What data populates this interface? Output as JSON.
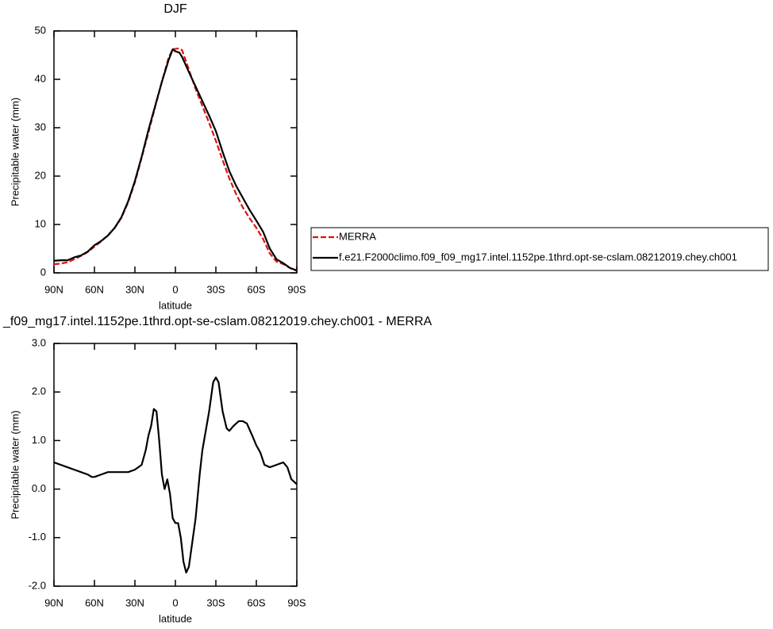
{
  "chart_data": [
    {
      "type": "line",
      "title": "DJF",
      "x_label": "latitude",
      "y_label": "Precipitable water (mm)",
      "x": [
        90,
        85,
        80,
        75,
        70,
        65,
        60,
        55,
        50,
        45,
        40,
        35,
        30,
        25,
        20,
        15,
        10,
        5,
        2,
        0,
        -3,
        -5,
        -10,
        -15,
        -20,
        -25,
        -30,
        -35,
        -40,
        -45,
        -50,
        -55,
        -60,
        -65,
        -70,
        -75,
        -80,
        -85,
        -90
      ],
      "series": [
        {
          "name": "MERRA",
          "color": "#e01010",
          "dashed": true,
          "values": [
            1.8,
            1.9,
            2.2,
            2.8,
            3.5,
            4.3,
            5.4,
            6.5,
            7.8,
            9.3,
            11.4,
            14.6,
            18.7,
            23.8,
            29,
            34.3,
            39.5,
            44.5,
            46.2,
            46.3,
            46.4,
            46,
            42,
            38,
            34.5,
            31,
            27.3,
            23.3,
            19.5,
            16.3,
            13.5,
            11.3,
            9.3,
            7,
            4,
            2.3,
            1.8,
            1,
            0.4
          ]
        },
        {
          "name": "f.e21.F2000climo.f09_f09_mg17.intel.1152pe.1thrd.opt-se-cslam.08212019.chey.ch001",
          "color": "#000000",
          "dashed": false,
          "values": [
            2.5,
            2.6,
            2.6,
            3.2,
            3.6,
            4.4,
            5.7,
            6.6,
            7.7,
            9.3,
            11.5,
            14.8,
            19,
            24,
            29.5,
            34.5,
            39.5,
            44,
            46.2,
            45.8,
            45.5,
            44.6,
            41.5,
            38.5,
            35.5,
            32.5,
            29.3,
            25,
            21,
            18,
            15.5,
            13,
            10.8,
            8.5,
            5,
            2.8,
            2,
            1,
            0.5
          ]
        }
      ],
      "xlim": [
        90,
        -90
      ],
      "xticks": [
        {
          "value": 90,
          "label": "90N"
        },
        {
          "value": 60,
          "label": "60N"
        },
        {
          "value": 30,
          "label": "30N"
        },
        0,
        {
          "value": -30,
          "label": "30S"
        },
        {
          "value": -60,
          "label": "60S"
        },
        {
          "value": -90,
          "label": "90S"
        }
      ],
      "ylim": [
        0,
        50
      ],
      "yticks": [
        0,
        10,
        20,
        30,
        40,
        50
      ],
      "legend": "right"
    },
    {
      "type": "line",
      "title": "_f09_mg17.intel.1152pe.1thrd.opt-se-cslam.08212019.chey.ch001 - MERRA",
      "x_label": "latitude",
      "y_label": "Precipitable water (mm)",
      "x": [
        90,
        85,
        80,
        75,
        70,
        65,
        62,
        60,
        55,
        50,
        45,
        40,
        35,
        30,
        25,
        22,
        20,
        18,
        16,
        14,
        12,
        10,
        8,
        6,
        4,
        2,
        0,
        -2,
        -4,
        -6,
        -8,
        -10,
        -12,
        -15,
        -18,
        -20,
        -25,
        -28,
        -30,
        -32,
        -35,
        -38,
        -40,
        -43,
        -47,
        -50,
        -53,
        -57,
        -60,
        -63,
        -66,
        -70,
        -75,
        -80,
        -83,
        -86,
        -90
      ],
      "series": [
        {
          "name": null,
          "color": "#000000",
          "dashed": false,
          "values": [
            0.55,
            0.5,
            0.45,
            0.4,
            0.35,
            0.3,
            0.25,
            0.25,
            0.3,
            0.35,
            0.35,
            0.35,
            0.35,
            0.4,
            0.5,
            0.8,
            1.1,
            1.3,
            1.65,
            1.6,
            1.0,
            0.3,
            0.0,
            0.2,
            -0.1,
            -0.6,
            -0.7,
            -0.7,
            -1.0,
            -1.5,
            -1.72,
            -1.6,
            -1.2,
            -0.6,
            0.3,
            0.8,
            1.6,
            2.2,
            2.3,
            2.2,
            1.6,
            1.25,
            1.2,
            1.3,
            1.4,
            1.4,
            1.35,
            1.1,
            0.9,
            0.75,
            0.5,
            0.45,
            0.5,
            0.55,
            0.45,
            0.2,
            0.1
          ]
        }
      ],
      "xlim": [
        90,
        -90
      ],
      "xticks": [
        {
          "value": 90,
          "label": "90N"
        },
        {
          "value": 60,
          "label": "60N"
        },
        {
          "value": 30,
          "label": "30N"
        },
        0,
        {
          "value": -30,
          "label": "30S"
        },
        {
          "value": -60,
          "label": "60S"
        },
        {
          "value": -90,
          "label": "90S"
        }
      ],
      "ylim": [
        -2,
        3
      ],
      "yticks": [
        {
          "value": -2,
          "label": "-2.0"
        },
        {
          "value": -1,
          "label": "-1.0"
        },
        {
          "value": 0,
          "label": "0.0"
        },
        {
          "value": 1,
          "label": "1.0"
        },
        {
          "value": 2,
          "label": "2.0"
        },
        {
          "value": 3,
          "label": "3.0"
        }
      ]
    }
  ]
}
